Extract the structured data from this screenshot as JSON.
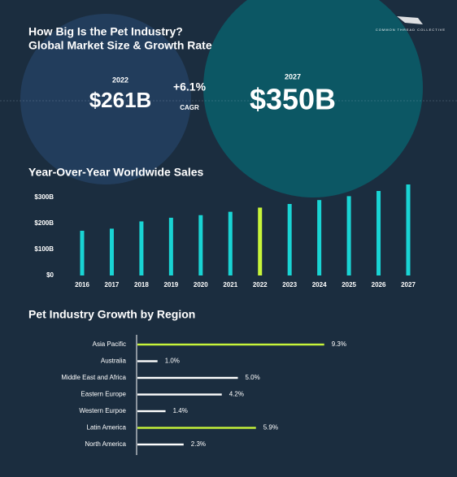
{
  "header": {
    "title_line1": "How Big Is the Pet Industry?",
    "title_line2": "Global Market Size & Growth Rate",
    "logo": "COMMON THREAD COLLECTIVE"
  },
  "stats": {
    "year_start": "2022",
    "value_start": "$261B",
    "growth": "+6.1%",
    "growth_label": "CAGR",
    "year_end": "2027",
    "value_end": "$350B"
  },
  "chart_data": [
    {
      "type": "bar",
      "title": "Year-Over-Year Worldwide Sales",
      "categories": [
        "2016",
        "2017",
        "2018",
        "2019",
        "2020",
        "2021",
        "2022",
        "2023",
        "2024",
        "2025",
        "2026",
        "2027"
      ],
      "values": [
        172,
        180,
        208,
        222,
        232,
        245,
        261,
        275,
        290,
        305,
        325,
        350
      ],
      "colors": [
        "#19d4d4",
        "#19d4d4",
        "#19d4d4",
        "#19d4d4",
        "#19d4d4",
        "#19d4d4",
        "#c8f53a",
        "#19d4d4",
        "#19d4d4",
        "#19d4d4",
        "#19d4d4",
        "#19d4d4"
      ],
      "ylim": [
        0,
        350
      ],
      "yticks": [
        {
          "value": 0,
          "label": "$0"
        },
        {
          "value": 100,
          "label": "$100B"
        },
        {
          "value": 200,
          "label": "$200B"
        },
        {
          "value": 300,
          "label": "$300B"
        }
      ],
      "grid": false
    },
    {
      "type": "bar",
      "orientation": "horizontal",
      "title": "Pet Industry Growth by Region",
      "categories": [
        "Asia Pacific",
        "Australia",
        "Middle East and Africa",
        "Eastern Europe",
        "Western Eurpoe",
        "Latin America",
        "North America"
      ],
      "values": [
        9.3,
        1.0,
        5.0,
        4.2,
        1.4,
        5.9,
        2.3
      ],
      "value_labels": [
        "9.3%",
        "1.0%",
        "5.0%",
        "4.2%",
        "1.4%",
        "5.9%",
        "2.3%"
      ],
      "colors": [
        "#c8f53a",
        "#ffffff",
        "#ffffff",
        "#ffffff",
        "#ffffff",
        "#c8f53a",
        "#ffffff"
      ],
      "xlim": [
        0,
        10
      ]
    }
  ]
}
